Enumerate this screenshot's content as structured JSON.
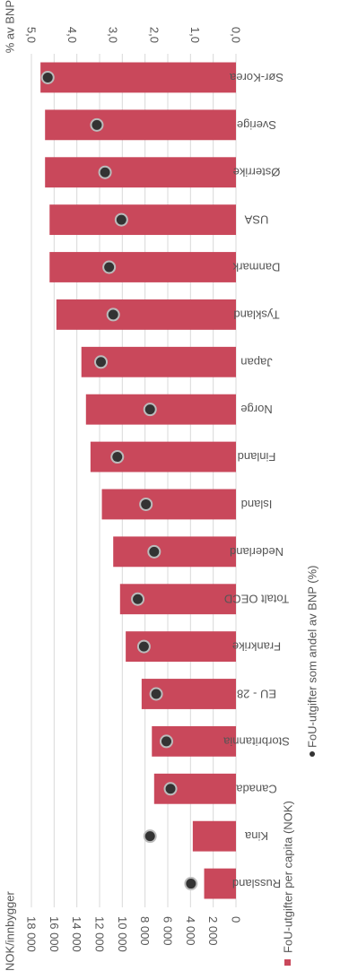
{
  "chart_data": {
    "type": "bar",
    "orientation": "rotated-90",
    "categories": [
      "Sør-Korea",
      "Sverige",
      "Østerrike",
      "USA",
      "Danmark",
      "Tyskland",
      "Japan",
      "Norge",
      "Finland",
      "Island",
      "Nederland",
      "Totalt OECD",
      "Frankrike",
      "EU - 28",
      "Storbritannia",
      "Canada",
      "Kina",
      "Russland"
    ],
    "series": [
      {
        "name": "FoU-utgifter per capita (NOK)",
        "type": "bar",
        "axis": "primary",
        "color": "#c9485b",
        "values": [
          17200,
          16800,
          16800,
          16400,
          16400,
          15800,
          13600,
          13200,
          12800,
          11800,
          10800,
          10200,
          9700,
          8300,
          7400,
          7200,
          3800,
          2800
        ]
      },
      {
        "name": "FoU-utgifter som andel av BNP (%)",
        "type": "point",
        "axis": "secondary",
        "color": "#333333",
        "values": [
          4.6,
          3.4,
          3.2,
          2.8,
          3.1,
          3.0,
          3.3,
          2.1,
          2.9,
          2.2,
          2.0,
          2.4,
          2.25,
          1.95,
          1.7,
          1.6,
          2.1,
          1.1
        ]
      }
    ],
    "primary_axis": {
      "label": "NOK/innbygger",
      "min": 0,
      "max": 18000,
      "ticks": [
        "18 000",
        "16 000",
        "14 000",
        "12 000",
        "10 000",
        "8 000",
        "6 000",
        "4 000",
        "2 000",
        "0"
      ]
    },
    "secondary_axis": {
      "label": "% av BNP",
      "min": 0,
      "max": 5,
      "ticks": [
        "5,0",
        "4,0",
        "3,0",
        "2,0",
        "1,0",
        "0,0"
      ]
    },
    "grid": true,
    "legend": [
      "FoU-utgifter per capita (NOK)",
      "FoU-utgifter som andel av BNP (%)"
    ],
    "legend_placement": "bottom"
  }
}
